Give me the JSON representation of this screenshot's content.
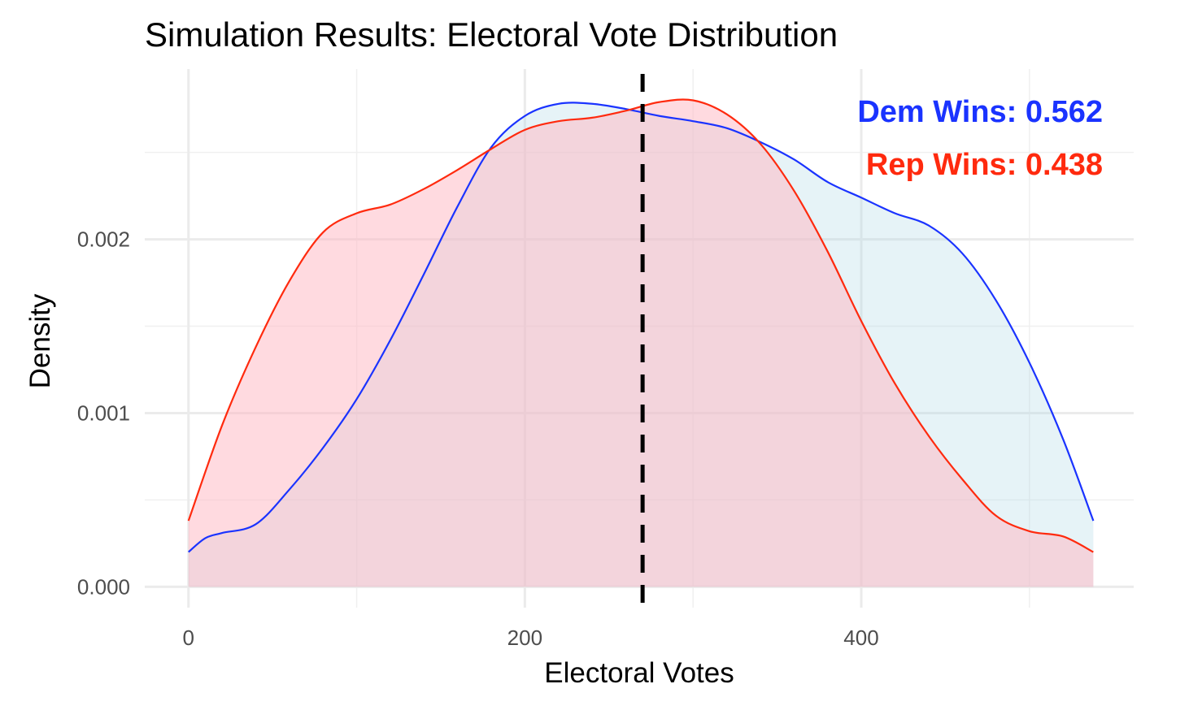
{
  "chart_data": {
    "type": "area",
    "title": "Simulation Results: Electoral Vote Distribution",
    "xlabel": "Electoral Votes",
    "ylabel": "Density",
    "xlim": [
      -26,
      562
    ],
    "ylim": [
      -0.00012,
      0.00298
    ],
    "x_ticks": [
      0,
      200,
      400
    ],
    "x_tick_labels": [
      "0",
      "200",
      "400"
    ],
    "y_ticks": [
      0.0,
      0.001,
      0.002
    ],
    "y_tick_labels": [
      "0.000",
      "0.001",
      "0.002"
    ],
    "x_minor_ticks": [
      100,
      300,
      500
    ],
    "y_minor_ticks": [
      0.0005,
      0.0015,
      0.0025
    ],
    "grid": true,
    "threshold": {
      "x": 270,
      "style": "dashed",
      "color": "#000000"
    },
    "series": [
      {
        "key": "dem",
        "line_color": "#1a33ff",
        "fill_color": "#add8e6",
        "fill_opacity": 0.3,
        "x": [
          0,
          10,
          20,
          40,
          60,
          80,
          100,
          120,
          140,
          160,
          180,
          200,
          220,
          240,
          260,
          280,
          300,
          320,
          340,
          360,
          380,
          400,
          420,
          440,
          460,
          480,
          500,
          520,
          538
        ],
        "y": [
          0.0002,
          0.00028,
          0.00031,
          0.00036,
          0.00056,
          0.0008,
          0.00108,
          0.00142,
          0.0018,
          0.00219,
          0.00253,
          0.00271,
          0.00278,
          0.00278,
          0.00275,
          0.00271,
          0.00268,
          0.00264,
          0.00256,
          0.00246,
          0.00233,
          0.00224,
          0.00215,
          0.00208,
          0.00192,
          0.00165,
          0.00129,
          0.00085,
          0.00038
        ]
      },
      {
        "key": "rep",
        "line_color": "#ff2a0e",
        "fill_color": "#ffb6c1",
        "fill_opacity": 0.5,
        "x": [
          0,
          20,
          40,
          60,
          80,
          100,
          120,
          140,
          160,
          180,
          200,
          220,
          240,
          260,
          280,
          300,
          320,
          340,
          360,
          380,
          400,
          420,
          440,
          460,
          480,
          500,
          520,
          538
        ],
        "y": [
          0.00038,
          0.00093,
          0.00138,
          0.00176,
          0.00204,
          0.00215,
          0.0022,
          0.00229,
          0.0024,
          0.00252,
          0.00263,
          0.00268,
          0.0027,
          0.00274,
          0.00279,
          0.0028,
          0.00272,
          0.00255,
          0.00228,
          0.00193,
          0.00153,
          0.00117,
          0.00087,
          0.00062,
          0.00041,
          0.00032,
          0.00029,
          0.0002
        ]
      }
    ],
    "annotations": [
      {
        "text": "Dem Wins: 0.562",
        "color": "#1a33ff"
      },
      {
        "text": "Rep Wins: 0.438",
        "color": "#ff2a0e"
      }
    ]
  }
}
